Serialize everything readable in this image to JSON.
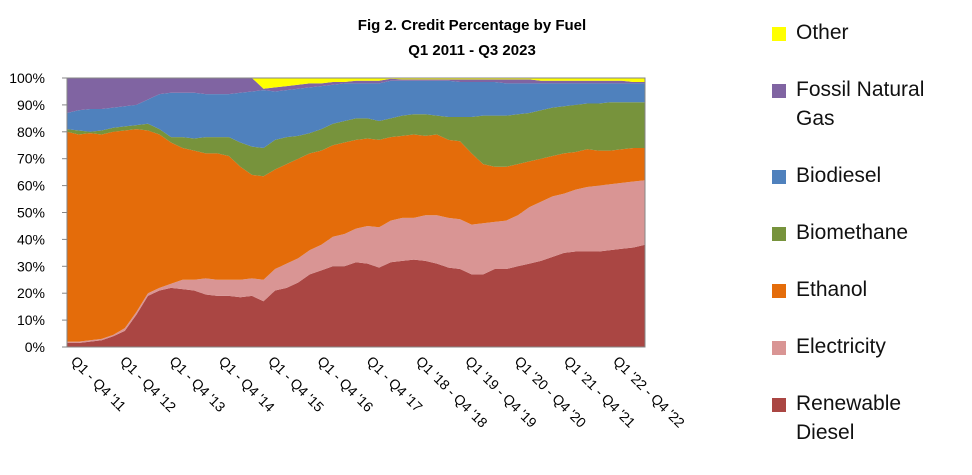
{
  "chart_data": {
    "type": "stacked_area",
    "title": "Fig 2. Credit Percentage by Fuel",
    "subtitle": "Q1 2011 - Q3 2023",
    "categories": [
      "Q1 - Q4 '11",
      null,
      null,
      null,
      "Q1 - Q4 '12",
      null,
      null,
      null,
      "Q1 - Q4 '13",
      null,
      null,
      null,
      "Q1 - Q4 '14",
      null,
      null,
      null,
      "Q1 - Q4 '15",
      null,
      null,
      null,
      "Q1 - Q4 '16",
      null,
      null,
      null,
      "Q1 - Q4 '17",
      null,
      null,
      null,
      "Q1 '18 - Q4 '18",
      null,
      null,
      null,
      "Q1 '19 - Q4 '19",
      null,
      null,
      null,
      "Q1 '20 - Q4 '20",
      null,
      null,
      null,
      "Q1 '21 - Q4 '21",
      null,
      null,
      null,
      "Q1 '22 - Q4 '22",
      null,
      null,
      null,
      null,
      null,
      null
    ],
    "ylim": [
      0,
      100
    ],
    "yticks": [
      {
        "value": 0,
        "label": "0%"
      },
      {
        "value": 10,
        "label": "10%"
      },
      {
        "value": 20,
        "label": "20%"
      },
      {
        "value": 30,
        "label": "30%"
      },
      {
        "value": 40,
        "label": "40%"
      },
      {
        "value": 50,
        "label": "50%"
      },
      {
        "value": 60,
        "label": "60%"
      },
      {
        "value": 70,
        "label": "70%"
      },
      {
        "value": 80,
        "label": "80%"
      },
      {
        "value": 90,
        "label": "90%"
      },
      {
        "value": 100,
        "label": "100%"
      }
    ],
    "grid": true,
    "series": [
      {
        "name": "Renewable Diesel",
        "color": "#aa4643",
        "values": [
          1.5,
          1.5,
          2,
          2.5,
          4,
          6,
          12,
          19,
          21,
          22,
          21.5,
          21,
          19.5,
          19,
          19,
          18.5,
          19,
          17,
          21,
          22,
          24,
          27,
          28.5,
          30,
          30,
          31.5,
          31,
          29.5,
          31.5,
          32,
          32.5,
          32,
          31,
          29.5,
          29,
          27,
          27,
          29,
          29,
          30,
          31,
          32,
          33.5,
          35,
          35.5,
          35.5,
          35.5,
          36,
          36.5,
          37,
          38
        ]
      },
      {
        "name": "Electricity",
        "color": "#d99594",
        "values": [
          0.5,
          0.5,
          0.5,
          0.5,
          0.5,
          1,
          1,
          1,
          1,
          1.5,
          3.5,
          4,
          6,
          6,
          6,
          6.5,
          6.5,
          8,
          8,
          9,
          9,
          9,
          9.5,
          11,
          12,
          12.5,
          14,
          15,
          15.5,
          16,
          15.5,
          17,
          18,
          18.5,
          18.5,
          18.5,
          19,
          17.5,
          18,
          19,
          21,
          22,
          22.5,
          22,
          23,
          24,
          24.5,
          24.5,
          24.5,
          24.5,
          24
        ]
      },
      {
        "name": "Ethanol",
        "color": "#e46c0a",
        "values": [
          78,
          77,
          77,
          76,
          75.5,
          73.5,
          68,
          60.5,
          57,
          52.5,
          49,
          48,
          46.5,
          47,
          46,
          42,
          38.5,
          38.5,
          37,
          37,
          37,
          36,
          35,
          34,
          34,
          33,
          32.5,
          32.5,
          31,
          30.5,
          31,
          29.5,
          30,
          29,
          29,
          26.5,
          22,
          20.5,
          20,
          19,
          17,
          16,
          15,
          15,
          14,
          14,
          13,
          12.5,
          12.5,
          12.5,
          12
        ]
      },
      {
        "name": "Biomethane",
        "color": "#77933c",
        "values": [
          1,
          1.5,
          0.5,
          1.5,
          1.5,
          1.5,
          1.5,
          2.5,
          2,
          2,
          4,
          4.5,
          6,
          6,
          7,
          9,
          10.5,
          10.5,
          11,
          10,
          8.5,
          7.5,
          8,
          8,
          8,
          8,
          7.5,
          7,
          7,
          7.5,
          7.5,
          8,
          7,
          8.5,
          9,
          13.5,
          18,
          19,
          19,
          18.5,
          18,
          18,
          18,
          17.5,
          17.5,
          17,
          17.5,
          18,
          17.5,
          17,
          17
        ]
      },
      {
        "name": "Biodiesel",
        "color": "#4f81bd",
        "values": [
          6,
          7.5,
          8.5,
          8,
          7.5,
          7.5,
          7.5,
          9,
          13,
          16.5,
          16.5,
          17,
          16,
          16,
          16,
          18.5,
          20.5,
          21.5,
          18,
          17.5,
          17.5,
          17,
          16,
          14.5,
          14,
          13,
          13,
          14,
          14,
          13,
          12.5,
          12.5,
          13,
          13.5,
          13,
          13,
          12.5,
          12.5,
          12,
          11.5,
          11,
          10,
          9,
          8.5,
          8,
          7.5,
          7.5,
          7,
          7,
          7,
          7
        ]
      },
      {
        "name": "Fossil Natural Gas",
        "color": "#8064a2",
        "values": [
          13,
          12,
          11.5,
          11.5,
          11,
          10.5,
          10,
          8,
          6,
          5.5,
          5.5,
          5.5,
          6,
          6,
          6,
          5.5,
          5,
          0.5,
          1.5,
          1.5,
          1.5,
          1.5,
          1,
          1,
          0.5,
          1,
          1,
          1,
          0.7,
          0.5,
          0.5,
          0.5,
          0.5,
          0.5,
          1,
          1,
          1,
          1,
          1.5,
          1.5,
          1.5,
          1,
          1,
          1,
          1,
          1,
          1,
          1,
          1,
          0.5,
          0.5
        ]
      },
      {
        "name": "Other",
        "color": "#ffff00",
        "values": [
          0,
          0,
          0,
          0,
          0,
          0,
          0,
          0,
          0,
          0,
          0,
          0,
          0,
          0,
          0,
          0,
          0,
          4,
          3.5,
          3,
          2.5,
          2,
          2,
          1.5,
          1.5,
          1,
          1,
          1,
          0.3,
          0.5,
          0.5,
          0.5,
          0.5,
          0.5,
          0.5,
          0.5,
          0.5,
          0.5,
          0.5,
          0.5,
          0.5,
          1,
          1,
          1,
          1,
          1,
          1,
          1,
          1,
          1.5,
          1.5
        ]
      }
    ]
  }
}
